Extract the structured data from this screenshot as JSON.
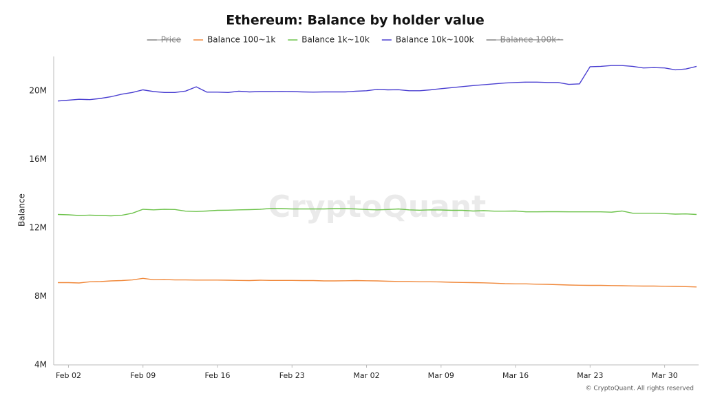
{
  "chart_data": {
    "type": "line",
    "title": "Ethereum: Balance by holder value",
    "y_label": "Balance",
    "watermark": "CryptoQuant",
    "footer": "© CryptoQuant. All rights reserved",
    "categories": [
      null,
      "Feb 02",
      null,
      null,
      null,
      null,
      null,
      null,
      "Feb 09",
      null,
      null,
      null,
      null,
      null,
      null,
      "Feb 16",
      null,
      null,
      null,
      null,
      null,
      null,
      "Feb 23",
      null,
      null,
      null,
      null,
      null,
      null,
      "Mar 02",
      null,
      null,
      null,
      null,
      null,
      null,
      "Mar 09",
      null,
      null,
      null,
      null,
      null,
      null,
      "Mar 16",
      null,
      null,
      null,
      null,
      null,
      null,
      "Mar 23",
      null,
      null,
      null,
      null,
      null,
      null,
      "Mar 30",
      null,
      null,
      null
    ],
    "ylim": [
      4000000,
      22000000
    ],
    "yticks": [
      {
        "value": 4000000,
        "label": "4M"
      },
      {
        "value": 8000000,
        "label": "8M"
      },
      {
        "value": 12000000,
        "label": "12M"
      },
      {
        "value": 16000000,
        "label": "16M"
      },
      {
        "value": 20000000,
        "label": "20M"
      }
    ],
    "series": [
      {
        "name": "Price",
        "color": "#777777",
        "hidden": true
      },
      {
        "name": "Balance 100~1k",
        "color": "#f0883a",
        "values": [
          8800000,
          8800000,
          8780000,
          8850000,
          8860000,
          8900000,
          8920000,
          8960000,
          9050000,
          8970000,
          8980000,
          8960000,
          8960000,
          8950000,
          8950000,
          8950000,
          8940000,
          8930000,
          8920000,
          8940000,
          8930000,
          8930000,
          8930000,
          8920000,
          8920000,
          8900000,
          8900000,
          8910000,
          8920000,
          8910000,
          8900000,
          8880000,
          8870000,
          8870000,
          8850000,
          8850000,
          8840000,
          8820000,
          8810000,
          8800000,
          8790000,
          8770000,
          8740000,
          8730000,
          8730000,
          8710000,
          8700000,
          8680000,
          8660000,
          8650000,
          8640000,
          8640000,
          8630000,
          8620000,
          8610000,
          8600000,
          8600000,
          8590000,
          8580000,
          8570000,
          8550000
        ]
      },
      {
        "name": "Balance 1k~10k",
        "color": "#6cc24a",
        "values": [
          12780000,
          12760000,
          12720000,
          12740000,
          12720000,
          12700000,
          12730000,
          12850000,
          13080000,
          13050000,
          13080000,
          13070000,
          12970000,
          12950000,
          12980000,
          13020000,
          13030000,
          13050000,
          13060000,
          13080000,
          13130000,
          13120000,
          13100000,
          13100000,
          13100000,
          13100000,
          13120000,
          13120000,
          13100000,
          13070000,
          13050000,
          13070000,
          13100000,
          13050000,
          13030000,
          13050000,
          13040000,
          13020000,
          13020000,
          12980000,
          13000000,
          12970000,
          12970000,
          12980000,
          12930000,
          12930000,
          12940000,
          12940000,
          12930000,
          12930000,
          12930000,
          12930000,
          12910000,
          12980000,
          12850000,
          12850000,
          12850000,
          12830000,
          12800000,
          12810000,
          12780000
        ]
      },
      {
        "name": "Balance 10k~100k",
        "color": "#4a3fd1",
        "values": [
          19400000,
          19450000,
          19500000,
          19480000,
          19550000,
          19650000,
          19800000,
          19900000,
          20050000,
          19950000,
          19900000,
          19900000,
          19980000,
          20230000,
          19920000,
          19920000,
          19900000,
          19970000,
          19930000,
          19950000,
          19950000,
          19960000,
          19950000,
          19930000,
          19920000,
          19930000,
          19930000,
          19930000,
          19970000,
          20000000,
          20080000,
          20050000,
          20060000,
          20000000,
          20000000,
          20050000,
          20120000,
          20180000,
          20240000,
          20300000,
          20350000,
          20400000,
          20450000,
          20480000,
          20500000,
          20500000,
          20480000,
          20480000,
          20370000,
          20400000,
          21400000,
          21420000,
          21470000,
          21470000,
          21420000,
          21330000,
          21350000,
          21330000,
          21220000,
          21270000,
          21420000
        ]
      },
      {
        "name": "Balance 100k~",
        "color": "#777777",
        "hidden": true
      }
    ]
  }
}
